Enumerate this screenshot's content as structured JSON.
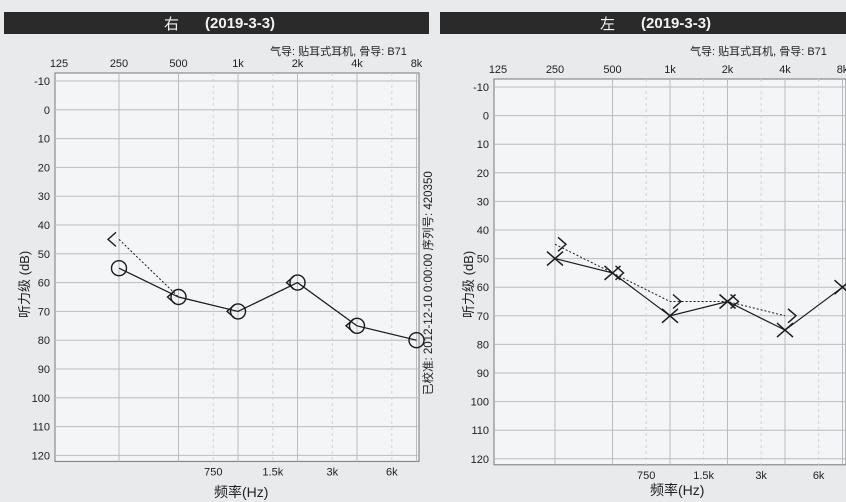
{
  "charts": {
    "right": {
      "ear": "右",
      "date": "(2019-3-3)",
      "conduction": "气导: 贴耳式耳机, 骨导: B71",
      "ylabel": "听力级 (dB)",
      "xlabel": "频率(Hz)"
    },
    "left": {
      "ear": "左",
      "date": "(2019-3-3)",
      "conduction": "气导: 贴耳式耳机, 骨导: B71",
      "ylabel": "听力级 (dB)",
      "xlabel": "频率(Hz)"
    }
  },
  "calibration_text": "已校准: 2012-12-10  0:00:00  序列号: 420350",
  "chart_data": [
    {
      "type": "line",
      "title": "右 (2019-3-3)",
      "xlabel": "频率(Hz)",
      "ylabel": "听力级 (dB)",
      "x_scale": "log",
      "x_ticks_top": [
        "125",
        "250",
        "500",
        "1k",
        "2k",
        "4k",
        "8k"
      ],
      "x_ticks_bottom": [
        "750",
        "1.5k",
        "3k",
        "6k"
      ],
      "y_ticks": [
        "-10",
        "0",
        "10",
        "20",
        "30",
        "40",
        "50",
        "60",
        "70",
        "80",
        "90",
        "100",
        "110",
        "120"
      ],
      "ylim": [
        -10,
        120
      ],
      "y_inverted": true,
      "grid": true,
      "series": [
        {
          "symbol": "circle",
          "line": "solid",
          "color": "#1a1a1a",
          "x": [
            250,
            500,
            1000,
            2000,
            4000,
            8000
          ],
          "y": [
            55,
            65,
            70,
            60,
            75,
            80
          ]
        },
        {
          "symbol": "left-bracket",
          "line": "dotted",
          "color": "#1a1a1a",
          "x": [
            250,
            500,
            1000,
            2000,
            4000
          ],
          "y": [
            45,
            65,
            70,
            60,
            75
          ]
        }
      ]
    },
    {
      "type": "line",
      "title": "左 (2019-3-3)",
      "xlabel": "频率(Hz)",
      "ylabel": "听力级 (dB)",
      "x_scale": "log",
      "x_ticks_top": [
        "125",
        "250",
        "500",
        "1k",
        "2k",
        "4k",
        "8k"
      ],
      "x_ticks_bottom": [
        "750",
        "1.5k",
        "3k",
        "6k"
      ],
      "y_ticks": [
        "-10",
        "0",
        "10",
        "20",
        "30",
        "40",
        "50",
        "60",
        "70",
        "80",
        "90",
        "100",
        "110",
        "120"
      ],
      "ylim": [
        -10,
        120
      ],
      "y_inverted": true,
      "grid": true,
      "series": [
        {
          "symbol": "x",
          "line": "solid",
          "color": "#1a1a1a",
          "x": [
            250,
            500,
            1000,
            2000,
            4000,
            8000
          ],
          "y": [
            50,
            55,
            70,
            65,
            75,
            60
          ]
        },
        {
          "symbol": "right-bracket",
          "line": "dotted",
          "color": "#1a1a1a",
          "x": [
            250,
            500,
            1000,
            2000,
            4000
          ],
          "y": [
            45,
            55,
            65,
            65,
            70
          ]
        }
      ]
    }
  ]
}
